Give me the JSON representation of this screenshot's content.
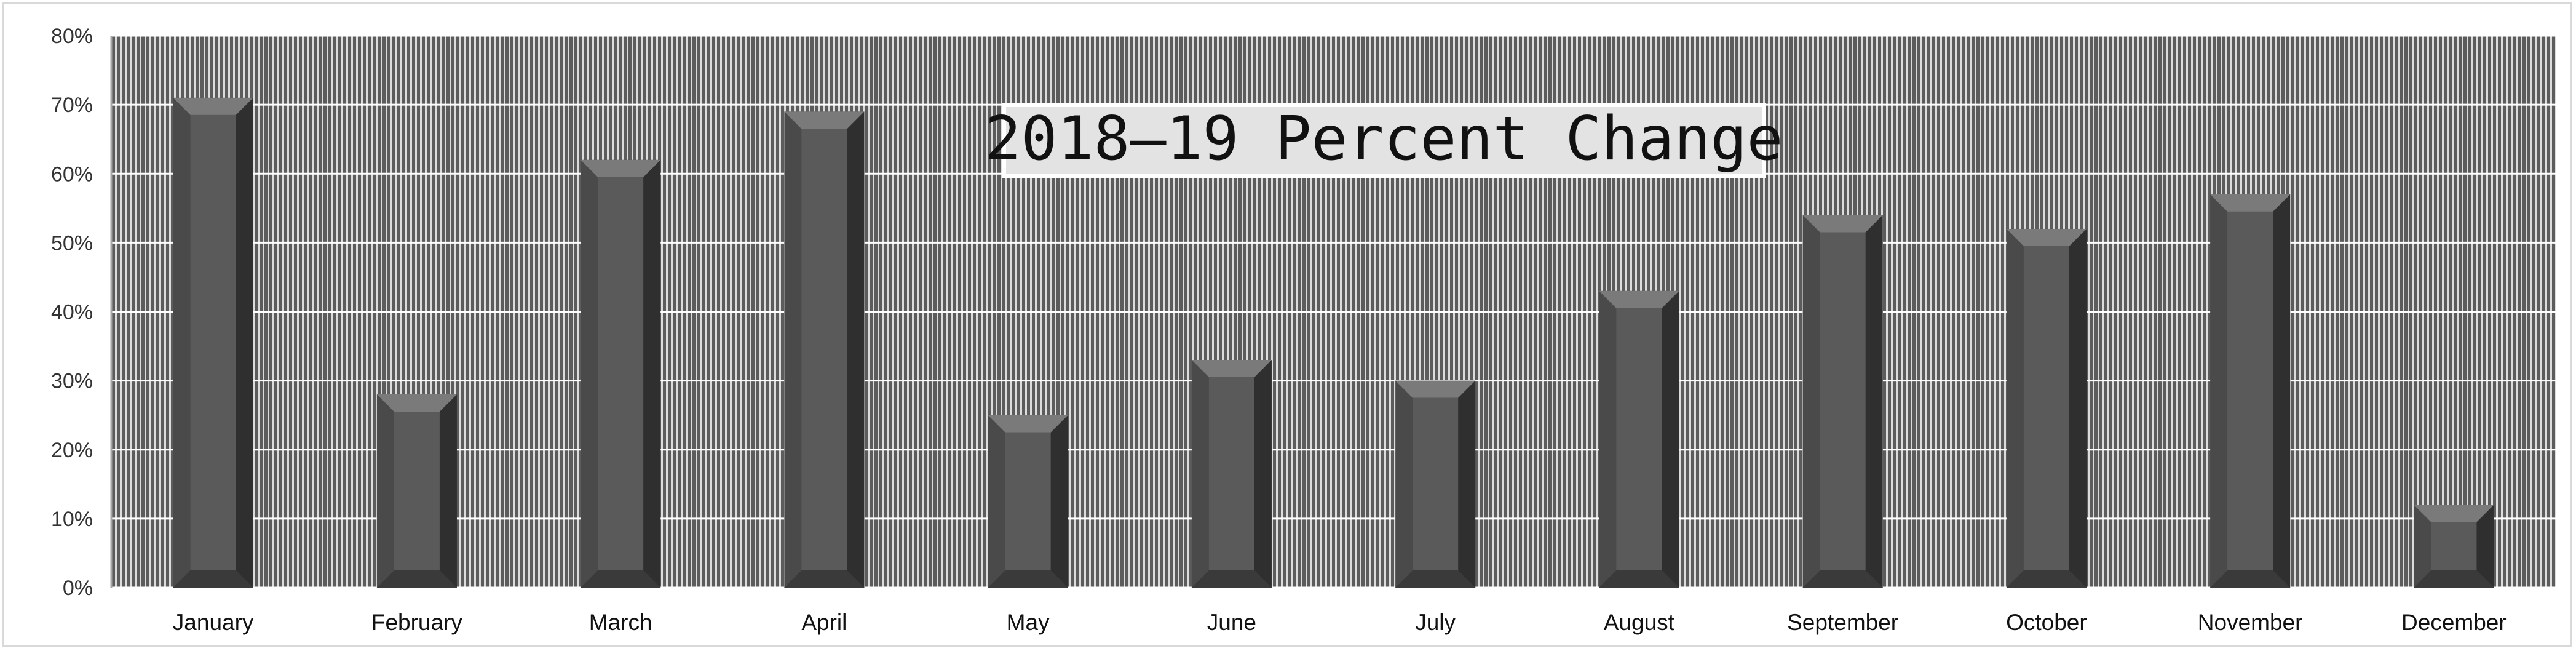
{
  "chart_data": {
    "type": "bar",
    "title": "2018–19 Percent Change",
    "categories": [
      "January",
      "February",
      "March",
      "April",
      "May",
      "June",
      "July",
      "August",
      "September",
      "October",
      "November",
      "December"
    ],
    "values": [
      71,
      28,
      62,
      69,
      25,
      33,
      30,
      43,
      54,
      52,
      57,
      12
    ],
    "value_unit": "%",
    "ylim": [
      0,
      80
    ],
    "y_ticks": [
      "0%",
      "10%",
      "20%",
      "30%",
      "40%",
      "50%",
      "60%",
      "70%",
      "80%"
    ],
    "grid": true,
    "legend": "none",
    "colors": {
      "bar_face": "#5a5a5a",
      "bar_right": "#2f2f2f",
      "bar_left": "#4a4a4a",
      "bar_top": "#7a7a7a",
      "plot_stripe_dark": "#5c5c5c",
      "plot_stripe_light": "#dcdcdc",
      "gridline": "#ffffff"
    }
  }
}
